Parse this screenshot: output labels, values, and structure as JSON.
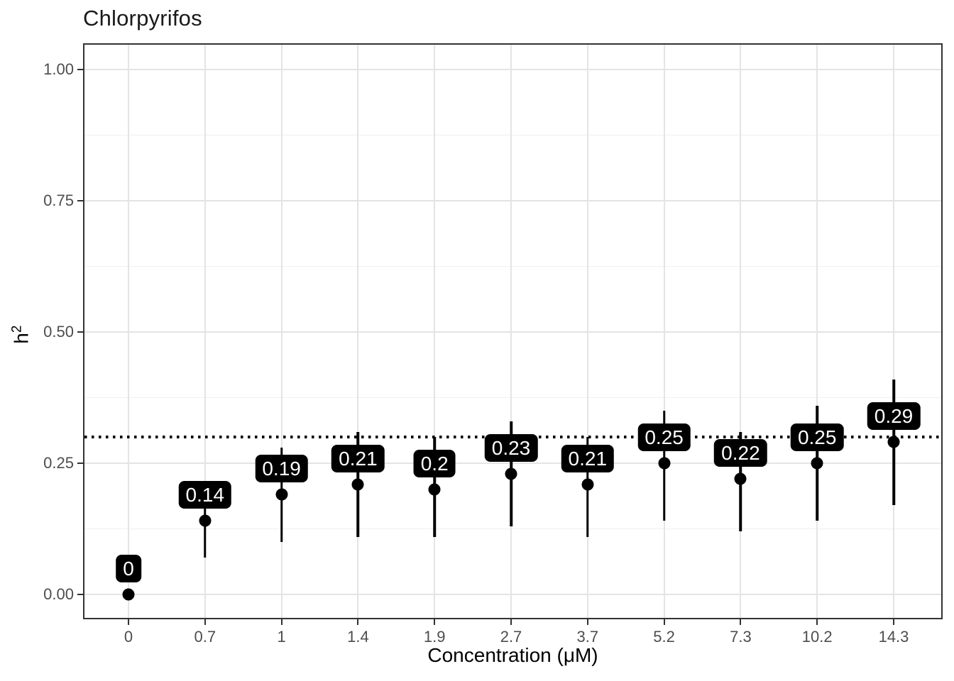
{
  "title": "Chlorpyrifos",
  "colors": {
    "point": "#000000",
    "error_bar": "#000000",
    "label_bg": "#000000",
    "label_text": "#ffffff",
    "grid_major": "#e4e4e4",
    "grid_minor": "#f0f0f0",
    "panel_border": "#333333",
    "tick_text": "#4d4d4d",
    "reference_line": "#000000"
  },
  "chart_data": {
    "type": "scatter",
    "subtype": "pointrange",
    "title": "Chlorpyrifos",
    "xlabel": "Concentration (μM)",
    "ylabel": "h²",
    "ylabel_base": "h",
    "ylabel_sup": "2",
    "categories": [
      "0",
      "0.7",
      "1",
      "1.4",
      "1.9",
      "2.7",
      "3.7",
      "5.2",
      "7.3",
      "10.2",
      "14.3"
    ],
    "series": [
      {
        "name": "h2",
        "values": [
          0,
          0.14,
          0.19,
          0.21,
          0.2,
          0.23,
          0.21,
          0.25,
          0.22,
          0.25,
          0.29
        ],
        "ci_low": [
          null,
          0.07,
          0.1,
          0.11,
          0.11,
          0.13,
          0.11,
          0.14,
          0.12,
          0.14,
          0.17
        ],
        "ci_high": [
          null,
          0.21,
          0.28,
          0.31,
          0.3,
          0.33,
          0.3,
          0.35,
          0.31,
          0.36,
          0.41
        ],
        "point_labels": [
          "0",
          "0.14",
          "0.19",
          "0.21",
          "0.2",
          "0.23",
          "0.21",
          "0.25",
          "0.22",
          "0.25",
          "0.29"
        ]
      }
    ],
    "reference_line": {
      "y": 0.3,
      "style": "dotted"
    },
    "y_ticks": {
      "values": [
        0,
        0.25,
        0.5,
        0.75,
        1.0
      ],
      "labels": [
        "0.00",
        "0.25",
        "0.50",
        "0.75",
        "1.00"
      ],
      "minor": [
        0.125,
        0.375,
        0.625,
        0.875
      ]
    },
    "ylim": [
      -0.05,
      1.05
    ],
    "grid": true,
    "legend": false
  }
}
